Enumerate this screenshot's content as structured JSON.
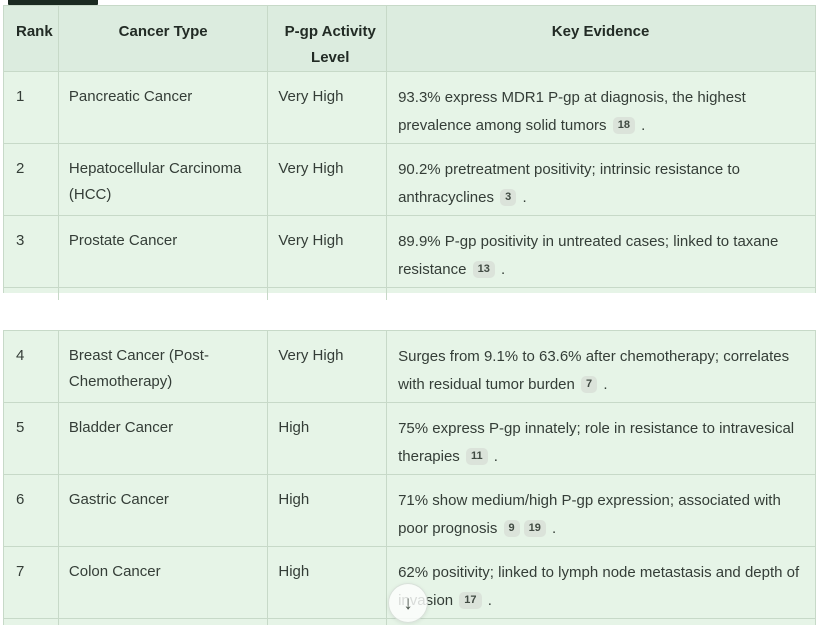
{
  "colors": {
    "cell_bg": "#e6f4e7",
    "header_bg": "#dcecdf",
    "border": "#c7d9c8",
    "text": "#343d37",
    "badge_bg": "#dbe3da",
    "tab_indicator": "#1b2a21"
  },
  "icons": {
    "arrow_down": "↓"
  },
  "table": {
    "headers": {
      "rank": "Rank",
      "cancer_type": "Cancer Type",
      "activity_level": "P-gp Activity Level",
      "key_evidence": "Key Evidence"
    },
    "sections": [
      {
        "row_indices": [
          0,
          1,
          2
        ]
      },
      {
        "row_indices": [
          3,
          4,
          5,
          6
        ]
      }
    ],
    "rows": [
      {
        "rank": "1",
        "cancer_type": "Pancreatic Cancer",
        "activity_level": "Very High",
        "evidence": "93.3% express MDR1 P-gp at diagnosis, the highest prevalence among solid tumors",
        "refs": [
          "18"
        ]
      },
      {
        "rank": "2",
        "cancer_type": "Hepatocellular Carcinoma (HCC)",
        "activity_level": "Very High",
        "evidence": "90.2% pretreatment positivity; intrinsic resistance to anthracyclines",
        "refs": [
          "3"
        ]
      },
      {
        "rank": "3",
        "cancer_type": "Prostate Cancer",
        "activity_level": "Very High",
        "evidence": "89.9% P-gp positivity in untreated cases; linked to taxane resistance",
        "refs": [
          "13"
        ]
      },
      {
        "rank": "4",
        "cancer_type": "Breast Cancer (Post-Chemotherapy)",
        "activity_level": "Very High",
        "evidence": "Surges from 9.1% to 63.6% after chemotherapy; correlates with residual tumor burden",
        "refs": [
          "7"
        ]
      },
      {
        "rank": "5",
        "cancer_type": "Bladder Cancer",
        "activity_level": "High",
        "evidence": "75% express P-gp innately; role in resistance to intravesical therapies",
        "refs": [
          "11"
        ]
      },
      {
        "rank": "6",
        "cancer_type": "Gastric Cancer",
        "activity_level": "High",
        "evidence": "71% show medium/high P-gp expression; associated with poor prognosis",
        "refs": [
          "9",
          "19"
        ]
      },
      {
        "rank": "7",
        "cancer_type": "Colon Cancer",
        "activity_level": "High",
        "evidence": "62% positivity; linked to lymph node metastasis and depth of invasion",
        "refs": [
          "17"
        ]
      }
    ]
  }
}
